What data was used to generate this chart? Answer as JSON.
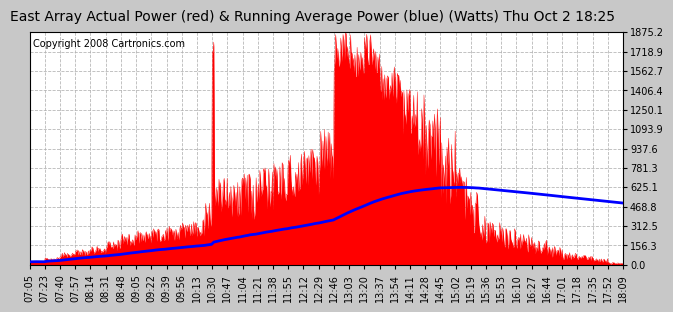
{
  "title": "East Array Actual Power (red) & Running Average Power (blue) (Watts) Thu Oct 2 18:25",
  "copyright": "Copyright 2008 Cartronics.com",
  "background_color": "#c8c8c8",
  "plot_bg_color": "#ffffff",
  "ytick_labels": [
    "0.0",
    "156.3",
    "312.5",
    "468.8",
    "625.1",
    "781.3",
    "937.6",
    "1093.9",
    "1250.1",
    "1406.4",
    "1562.7",
    "1718.9",
    "1875.2"
  ],
  "ytick_values": [
    0.0,
    156.3,
    312.5,
    468.8,
    625.1,
    781.3,
    937.6,
    1093.9,
    1250.1,
    1406.4,
    1562.7,
    1718.9,
    1875.2
  ],
  "xtick_labels": [
    "07:05",
    "07:23",
    "07:40",
    "07:57",
    "08:14",
    "08:31",
    "08:48",
    "09:05",
    "09:22",
    "09:39",
    "09:56",
    "10:13",
    "10:30",
    "10:47",
    "11:04",
    "11:21",
    "11:38",
    "11:55",
    "12:12",
    "12:29",
    "12:46",
    "13:03",
    "13:20",
    "13:37",
    "13:54",
    "14:11",
    "14:28",
    "14:45",
    "15:02",
    "15:19",
    "15:36",
    "15:53",
    "16:10",
    "16:27",
    "16:44",
    "17:01",
    "17:18",
    "17:35",
    "17:52",
    "18:09"
  ],
  "red_color": "#ff0000",
  "blue_color": "#0000ff",
  "grid_color": "#b0b0b0",
  "title_fontsize": 10,
  "copyright_fontsize": 7,
  "tick_fontsize": 7,
  "ymax": 1875.2,
  "ymin": 0.0
}
